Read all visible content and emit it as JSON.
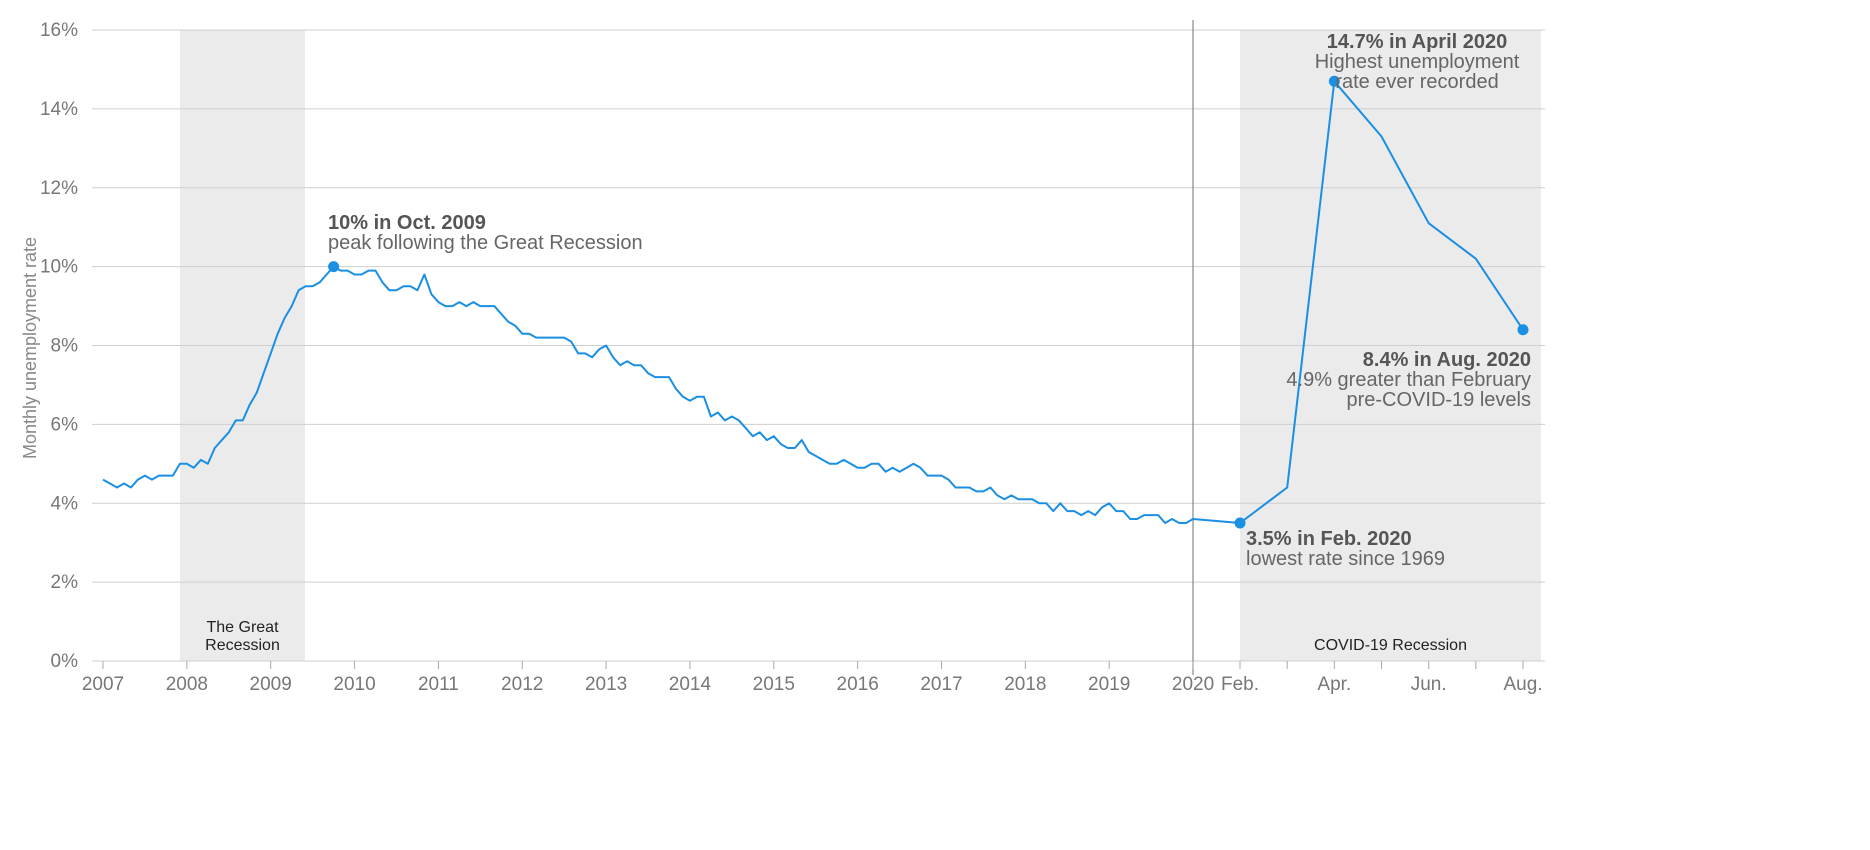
{
  "chart_data": {
    "type": "line",
    "title": "",
    "xlabel": "",
    "ylabel": "Monthly unemployment rate",
    "ylim": [
      0,
      16
    ],
    "yticks": [
      0,
      2,
      4,
      6,
      8,
      10,
      12,
      14,
      16
    ],
    "ytick_labels": [
      "0%",
      "2%",
      "4%",
      "6%",
      "8%",
      "10%",
      "12%",
      "14%",
      "16%"
    ],
    "xtick_labels": [
      "2007",
      "2008",
      "2009",
      "2010",
      "2011",
      "2012",
      "2013",
      "2014",
      "2015",
      "2016",
      "2017",
      "2018",
      "2019",
      "2020",
      "Feb.",
      "Apr.",
      "Jun.",
      "Aug."
    ],
    "grid": true,
    "line_color": "#1a8fe3",
    "band_color": "#ebebeb",
    "series": [
      {
        "x": [
          "2007-01",
          "2007-02",
          "2007-03",
          "2007-04",
          "2007-05",
          "2007-06",
          "2007-07",
          "2007-08",
          "2007-09",
          "2007-10",
          "2007-11",
          "2007-12",
          "2008-01",
          "2008-02",
          "2008-03",
          "2008-04",
          "2008-05",
          "2008-06",
          "2008-07",
          "2008-08",
          "2008-09",
          "2008-10",
          "2008-11",
          "2008-12",
          "2009-01",
          "2009-02",
          "2009-03",
          "2009-04",
          "2009-05",
          "2009-06",
          "2009-07",
          "2009-08",
          "2009-09",
          "2009-10",
          "2009-11",
          "2009-12",
          "2010-01",
          "2010-02",
          "2010-03",
          "2010-04",
          "2010-05",
          "2010-06",
          "2010-07",
          "2010-08",
          "2010-09",
          "2010-10",
          "2010-11",
          "2010-12",
          "2011-01",
          "2011-02",
          "2011-03",
          "2011-04",
          "2011-05",
          "2011-06",
          "2011-07",
          "2011-08",
          "2011-09",
          "2011-10",
          "2011-11",
          "2011-12",
          "2012-01",
          "2012-02",
          "2012-03",
          "2012-04",
          "2012-05",
          "2012-06",
          "2012-07",
          "2012-08",
          "2012-09",
          "2012-10",
          "2012-11",
          "2012-12",
          "2013-01",
          "2013-02",
          "2013-03",
          "2013-04",
          "2013-05",
          "2013-06",
          "2013-07",
          "2013-08",
          "2013-09",
          "2013-10",
          "2013-11",
          "2013-12",
          "2014-01",
          "2014-02",
          "2014-03",
          "2014-04",
          "2014-05",
          "2014-06",
          "2014-07",
          "2014-08",
          "2014-09",
          "2014-10",
          "2014-11",
          "2014-12",
          "2015-01",
          "2015-02",
          "2015-03",
          "2015-04",
          "2015-05",
          "2015-06",
          "2015-07",
          "2015-08",
          "2015-09",
          "2015-10",
          "2015-11",
          "2015-12",
          "2016-01",
          "2016-02",
          "2016-03",
          "2016-04",
          "2016-05",
          "2016-06",
          "2016-07",
          "2016-08",
          "2016-09",
          "2016-10",
          "2016-11",
          "2016-12",
          "2017-01",
          "2017-02",
          "2017-03",
          "2017-04",
          "2017-05",
          "2017-06",
          "2017-07",
          "2017-08",
          "2017-09",
          "2017-10",
          "2017-11",
          "2017-12",
          "2018-01",
          "2018-02",
          "2018-03",
          "2018-04",
          "2018-05",
          "2018-06",
          "2018-07",
          "2018-08",
          "2018-09",
          "2018-10",
          "2018-11",
          "2018-12",
          "2019-01",
          "2019-02",
          "2019-03",
          "2019-04",
          "2019-05",
          "2019-06",
          "2019-07",
          "2019-08",
          "2019-09",
          "2019-10",
          "2019-11",
          "2019-12",
          "2020-01",
          "2020-02",
          "2020-03",
          "2020-04",
          "2020-05",
          "2020-06",
          "2020-07",
          "2020-08"
        ],
        "values": [
          4.6,
          4.5,
          4.4,
          4.5,
          4.4,
          4.6,
          4.7,
          4.6,
          4.7,
          4.7,
          4.7,
          5.0,
          5.0,
          4.9,
          5.1,
          5.0,
          5.4,
          5.6,
          5.8,
          6.1,
          6.1,
          6.5,
          6.8,
          7.3,
          7.8,
          8.3,
          8.7,
          9.0,
          9.4,
          9.5,
          9.5,
          9.6,
          9.8,
          10.0,
          9.9,
          9.9,
          9.8,
          9.8,
          9.9,
          9.9,
          9.6,
          9.4,
          9.4,
          9.5,
          9.5,
          9.4,
          9.8,
          9.3,
          9.1,
          9.0,
          9.0,
          9.1,
          9.0,
          9.1,
          9.0,
          9.0,
          9.0,
          8.8,
          8.6,
          8.5,
          8.3,
          8.3,
          8.2,
          8.2,
          8.2,
          8.2,
          8.2,
          8.1,
          7.8,
          7.8,
          7.7,
          7.9,
          8.0,
          7.7,
          7.5,
          7.6,
          7.5,
          7.5,
          7.3,
          7.2,
          7.2,
          7.2,
          6.9,
          6.7,
          6.6,
          6.7,
          6.7,
          6.2,
          6.3,
          6.1,
          6.2,
          6.1,
          5.9,
          5.7,
          5.8,
          5.6,
          5.7,
          5.5,
          5.4,
          5.4,
          5.6,
          5.3,
          5.2,
          5.1,
          5.0,
          5.0,
          5.1,
          5.0,
          4.9,
          4.9,
          5.0,
          5.0,
          4.8,
          4.9,
          4.8,
          4.9,
          5.0,
          4.9,
          4.7,
          4.7,
          4.7,
          4.6,
          4.4,
          4.4,
          4.4,
          4.3,
          4.3,
          4.4,
          4.2,
          4.1,
          4.2,
          4.1,
          4.1,
          4.1,
          4.0,
          4.0,
          3.8,
          4.0,
          3.8,
          3.8,
          3.7,
          3.8,
          3.7,
          3.9,
          4.0,
          3.8,
          3.8,
          3.6,
          3.6,
          3.7,
          3.7,
          3.7,
          3.5,
          3.6,
          3.5,
          3.5,
          3.6,
          3.5,
          4.4,
          14.7,
          13.3,
          11.1,
          10.2,
          8.4
        ]
      }
    ],
    "shaded_regions": [
      {
        "label": "The Great Recession",
        "label_lines": [
          "The Great",
          "Recession"
        ],
        "start": "2007-12",
        "end": "2009-06"
      },
      {
        "label": "COVID-19 Recession",
        "label_lines": [
          "COVID-19 Recession"
        ],
        "start": "2020-02",
        "end": "2020-08"
      }
    ],
    "annotations": [
      {
        "id": "peak-2009",
        "point": "2009-10",
        "value": 10.0,
        "bold": "10% in Oct. 2009",
        "lines": [
          "peak following the Great Recession"
        ]
      },
      {
        "id": "low-2020",
        "point": "2020-02",
        "value": 3.5,
        "bold": "3.5% in Feb. 2020",
        "lines": [
          "lowest rate since 1969"
        ]
      },
      {
        "id": "peak-2020",
        "point": "2020-04",
        "value": 14.7,
        "bold": "14.7% in April 2020",
        "lines": [
          "Highest unemployment",
          "rate ever recorded"
        ]
      },
      {
        "id": "aug-2020",
        "point": "2020-08",
        "value": 8.4,
        "bold": "8.4% in Aug. 2020",
        "lines": [
          "4.9% greater than February",
          "pre-COVID-19 levels"
        ]
      }
    ]
  }
}
